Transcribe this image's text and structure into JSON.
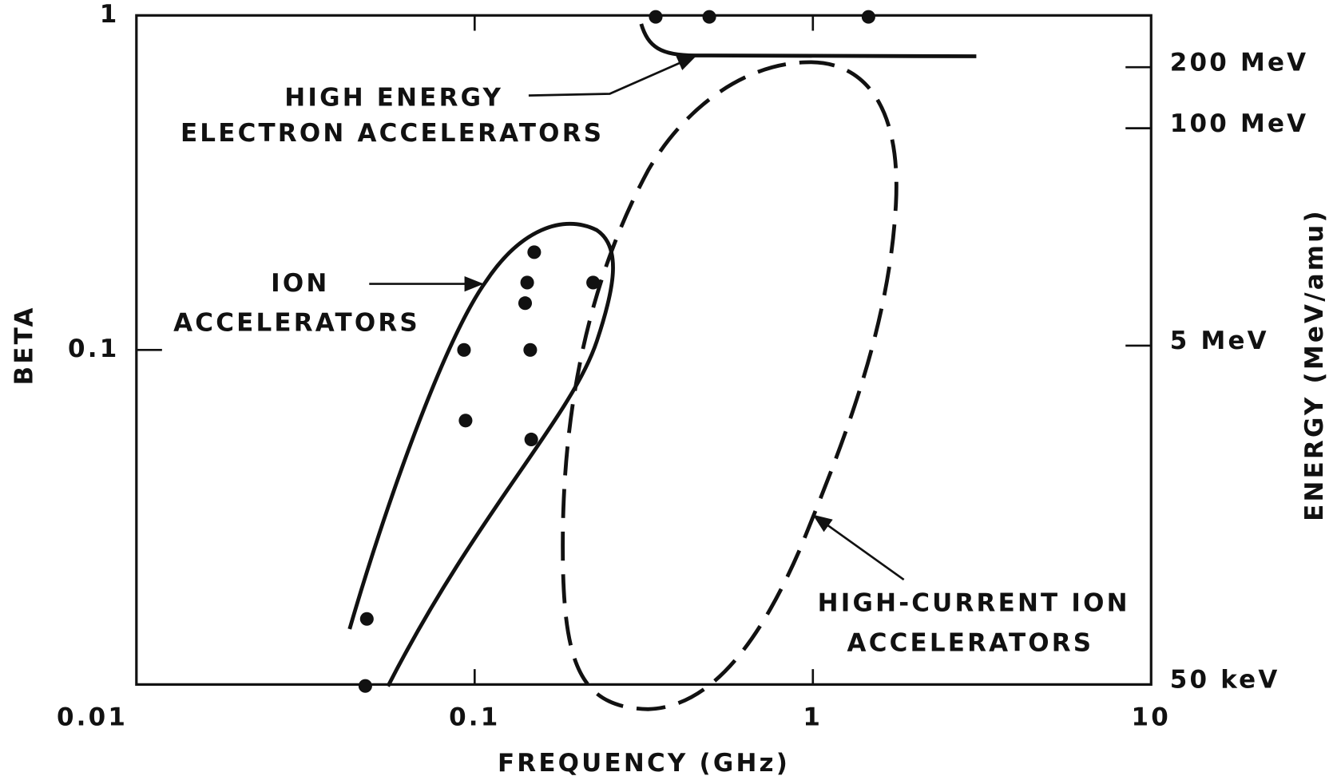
{
  "chart_data": {
    "type": "scatter",
    "x_label": "FREQUENCY (GHz)",
    "y_label": "BETA",
    "y2_label": "ENERGY (MeV/amu)",
    "log_x": true,
    "log_y": true,
    "color": "#111111",
    "xlim": [
      0.01,
      10
    ],
    "xticks": [
      0.1,
      1,
      10
    ],
    "ylim": [
      0.01,
      1
    ],
    "yticks": [
      0.01,
      0.1,
      1
    ],
    "y2lim": [
      0.01,
      1
    ],
    "y2ticks": [
      {
        "value": 0.7,
        "label": "200 MeV"
      },
      {
        "value": 0.46,
        "label": "100 MeV"
      },
      {
        "value": 0.103,
        "label": "5 MeV"
      },
      {
        "value": 0.01,
        "label": "50 keV"
      }
    ],
    "x": [
      0.343,
      0.494,
      1.46,
      0.15,
      0.143,
      0.224,
      0.141,
      0.093,
      0.146,
      0.094,
      0.147,
      0.048,
      0.0475
    ],
    "values": [
      0.99,
      0.99,
      0.99,
      0.196,
      0.159,
      0.159,
      0.138,
      0.1,
      0.1,
      0.0615,
      0.054,
      0.0157,
      0.0099
    ],
    "annotations": [
      {
        "lines": [
          "HIGH ENERGY",
          "ELECTRON ACCELERATORS"
        ]
      },
      {
        "lines": [
          "ION",
          "ACCELERATORS"
        ]
      },
      {
        "lines": [
          "HIGH-CURRENT ION",
          "ACCELERATORS"
        ]
      }
    ]
  }
}
